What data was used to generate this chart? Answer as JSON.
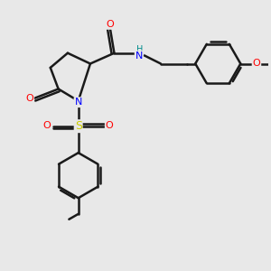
{
  "background_color": "#e8e8e8",
  "bond_color": "#1a1a1a",
  "bond_width": 1.8,
  "atom_colors": {
    "N": "#0000ff",
    "O": "#ff0000",
    "S": "#cccc00",
    "H_label": "#008b8b",
    "C": "#1a1a1a"
  },
  "figsize": [
    3.0,
    3.0
  ],
  "dpi": 100,
  "xlim": [
    0,
    10
  ],
  "ylim": [
    0,
    10
  ]
}
